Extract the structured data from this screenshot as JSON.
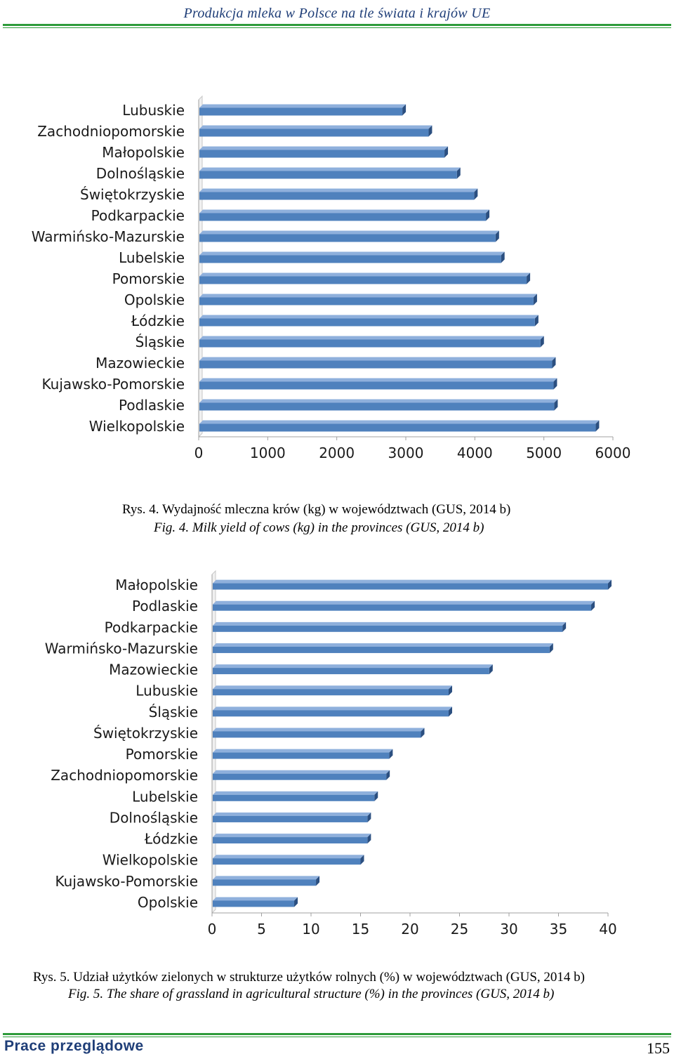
{
  "header": {
    "running_title": "Produkcja  mleka  w  Polsce  na  tle  świata  i  krajów  UE"
  },
  "figure4": {
    "caption_pl": "Rys. 4. Wydajność mleczna krów (kg) w województwach (GUS, 2014 b)",
    "caption_en": "Fig. 4. Milk yield of cows (kg) in the provinces (GUS, 2014 b)"
  },
  "figure5": {
    "caption_pl": "Rys. 5. Udział użytków zielonych w strukturze użytków rolnych (%) w województwach (GUS, 2014 b)",
    "caption_en": "Fig. 5. The share of grassland in agricultural structure (%) in the provinces (GUS, 2014 b)"
  },
  "footer": {
    "section": "Prace  przeglądowe",
    "page_number": "155"
  },
  "colors": {
    "bar_front": "#4f81bd",
    "bar_top": "#8fb0dc",
    "bar_side": "#2b4f80",
    "accent_green": "#2e9b3b",
    "title_blue": "#1f3e78"
  },
  "chart_data": [
    {
      "type": "bar",
      "orientation": "horizontal",
      "categories": [
        "Lubuskie",
        "Zachodniopomorskie",
        "Małopolskie",
        "Dolnośląskie",
        "Świętokrzyskie",
        "Podkarpackie",
        "Warmińsko-Mazurskie",
        "Lubelskie",
        "Pomorskie",
        "Opolskie",
        "Łódzkie",
        "Śląskie",
        "Mazowieckie",
        "Kujawsko-Pomorskie",
        "Podlaskie",
        "Wielkopolskie"
      ],
      "values": [
        2950,
        3330,
        3560,
        3740,
        3990,
        4160,
        4300,
        4380,
        4750,
        4850,
        4870,
        4950,
        5120,
        5140,
        5150,
        5750
      ],
      "xlim": [
        0,
        6000
      ],
      "xticks": [
        "0",
        "1000",
        "2000",
        "3000",
        "4000",
        "5000",
        "6000"
      ],
      "grid": false
    },
    {
      "type": "bar",
      "orientation": "horizontal",
      "categories": [
        "Małopolskie",
        "Podlaskie",
        "Podkarpackie",
        "Warmińsko-Mazurskie",
        "Mazowieckie",
        "Lubuskie",
        "Śląskie",
        "Świętokrzyskie",
        "Pomorskie",
        "Zachodniopomorskie",
        "Lubelskie",
        "Dolnośląskie",
        "Łódzkie",
        "Wielkopolskie",
        "Kujawsko-Pomorskie",
        "Opolskie"
      ],
      "values": [
        40.0,
        38.3,
        35.4,
        34.1,
        28.0,
        23.9,
        23.9,
        21.1,
        17.9,
        17.6,
        16.4,
        15.7,
        15.7,
        15.0,
        10.5,
        8.3
      ],
      "xlim": [
        0,
        40
      ],
      "xticks": [
        "0",
        "5",
        "10",
        "15",
        "20",
        "25",
        "30",
        "35",
        "40"
      ],
      "grid": false
    }
  ]
}
